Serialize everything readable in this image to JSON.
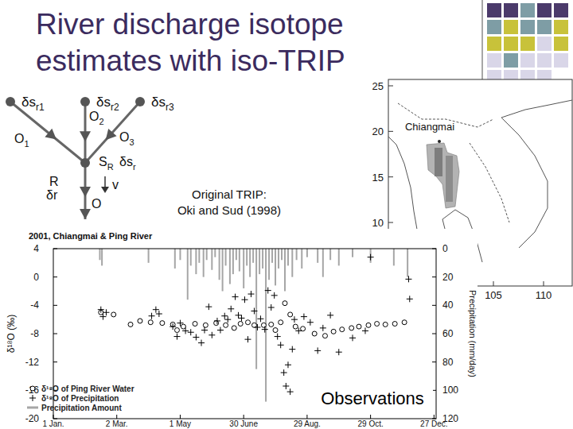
{
  "slide": {
    "title": "River discharge isotope estimates with iso-TRIP",
    "annotation": [
      "Original TRIP:",
      "Oki and Sud (1998)"
    ],
    "stamp": "Observations"
  },
  "diagram": {
    "sources": [
      {
        "label": "δs",
        "sub": "r1"
      },
      {
        "label": "δs",
        "sub": "r2"
      },
      {
        "label": "δs",
        "sub": "r3"
      }
    ],
    "outflows": [
      {
        "label": "O",
        "sub": "1"
      },
      {
        "label": "O",
        "sub": "2"
      },
      {
        "label": "O",
        "sub": "3"
      }
    ],
    "storage": {
      "label": "S",
      "sub": "R"
    },
    "storage_isotope": {
      "label": "δs",
      "sub": "r"
    },
    "runoff": {
      "label": "R",
      "isotope": "δr"
    },
    "velocity": "v",
    "outflow": "O"
  },
  "map": {
    "label": "Chiangmai",
    "lat_ticks": [
      25,
      20,
      15,
      10
    ],
    "lon_ticks": [
      105,
      110
    ]
  },
  "chart_data": {
    "type": "scatter",
    "title": "2001, Chiangmai & Ping River",
    "ylabel": "δ¹⁸O (‰)",
    "y2label": "Precipitation (mm/day)",
    "xlim": [
      0,
      362
    ],
    "xticks": [
      {
        "value": 0,
        "label": "1 Jan."
      },
      {
        "value": 60,
        "label": "2 Mar."
      },
      {
        "value": 120,
        "label": "1 May"
      },
      {
        "value": 180,
        "label": "30 June"
      },
      {
        "value": 240,
        "label": "29 Aug."
      },
      {
        "value": 300,
        "label": "29 Oct."
      },
      {
        "value": 360,
        "label": "27 Dec."
      }
    ],
    "ylim": [
      -20,
      4
    ],
    "yticks": [
      4,
      0,
      -4,
      -8,
      -12,
      -16,
      -20
    ],
    "y2lim": [
      120,
      0
    ],
    "y2ticks": [
      0,
      20,
      40,
      60,
      80,
      100,
      120
    ],
    "grid": false,
    "legend": "lower left",
    "series": [
      {
        "name": "δ¹⁸O of Ping River Water",
        "type": "scatter",
        "marker": "circle",
        "color": "#000000",
        "x": [
          45,
          57,
          73,
          82,
          92,
          103,
          113,
          117,
          123,
          134,
          144,
          154,
          163,
          171,
          177,
          184,
          190,
          199,
          206,
          210,
          215,
          219,
          224,
          229,
          236,
          247,
          257,
          265,
          273,
          282,
          289,
          298,
          306,
          314,
          323,
          332
        ],
        "values": [
          -5.0,
          -5.3,
          -6.7,
          -6.2,
          -6.4,
          -6.5,
          -6.7,
          -7.5,
          -7.0,
          -6.6,
          -6.8,
          -6.5,
          -6.8,
          -7.2,
          -6.6,
          -6.4,
          -6.8,
          -6.8,
          -6.7,
          -7.5,
          -6.4,
          -3.7,
          -5.3,
          -7.0,
          -7.3,
          -8.0,
          -8.3,
          -7.7,
          -7.4,
          -7.2,
          -7.0,
          -6.8,
          -6.6,
          -6.7,
          -6.6,
          -6.4
        ]
      },
      {
        "name": "δ¹⁸O of Precipitation",
        "type": "scatter",
        "marker": "plus",
        "color": "#000000",
        "x": [
          45,
          47,
          50,
          93,
          97,
          100,
          113,
          117,
          120,
          125,
          130,
          135,
          140,
          143,
          147,
          150,
          155,
          158,
          162,
          165,
          168,
          172,
          175,
          178,
          181,
          184,
          187,
          190,
          193,
          196,
          200,
          203,
          206,
          209,
          212,
          215,
          218,
          220,
          222,
          224,
          226,
          228,
          232,
          237,
          243,
          250,
          255,
          262,
          270,
          283,
          295,
          300,
          336,
          337
        ],
        "values": [
          -4.6,
          -5.6,
          -5.0,
          -5.5,
          -4.6,
          -5.2,
          -7.0,
          -8.4,
          -6.5,
          -7.6,
          -7.8,
          -8.5,
          -9.3,
          -7.5,
          -4.2,
          -8.2,
          -6.2,
          -7.5,
          -5.5,
          -6.0,
          -4.5,
          -2.8,
          -5.4,
          -5.8,
          -3.2,
          -8.8,
          -2.4,
          -4.8,
          -7.1,
          -5.9,
          -7.4,
          -1.9,
          -4.3,
          -2.6,
          -8.4,
          -9.6,
          -13.5,
          -15.4,
          -12.4,
          -16.2,
          -10.2,
          -6.0,
          -7.6,
          -5.6,
          -6.4,
          -10.4,
          -7.2,
          -5.4,
          -10.6,
          -8.6,
          -7.6,
          2.8,
          -0.3,
          -3.1
        ]
      },
      {
        "name": "Precipitation Amount",
        "type": "bar",
        "axis": "y2",
        "color": "#a6a6a6",
        "x": [
          44,
          46,
          90,
          115,
          120,
          127,
          130,
          135,
          138,
          142,
          145,
          150,
          153,
          157,
          160,
          163,
          167,
          170,
          173,
          176,
          180,
          183,
          186,
          189,
          192,
          195,
          198,
          201,
          204,
          207,
          210,
          213,
          216,
          219,
          222,
          226,
          230,
          235,
          240,
          250,
          255,
          262,
          270,
          283,
          300,
          322,
          335
        ],
        "values": [
          8,
          12,
          10,
          14,
          8,
          36,
          12,
          18,
          10,
          20,
          8,
          15,
          6,
          22,
          30,
          12,
          25,
          18,
          8,
          16,
          28,
          12,
          20,
          10,
          85,
          18,
          14,
          108,
          22,
          10,
          26,
          14,
          8,
          30,
          12,
          20,
          8,
          14,
          6,
          10,
          20,
          8,
          12,
          6,
          10,
          12,
          20
        ]
      }
    ]
  }
}
